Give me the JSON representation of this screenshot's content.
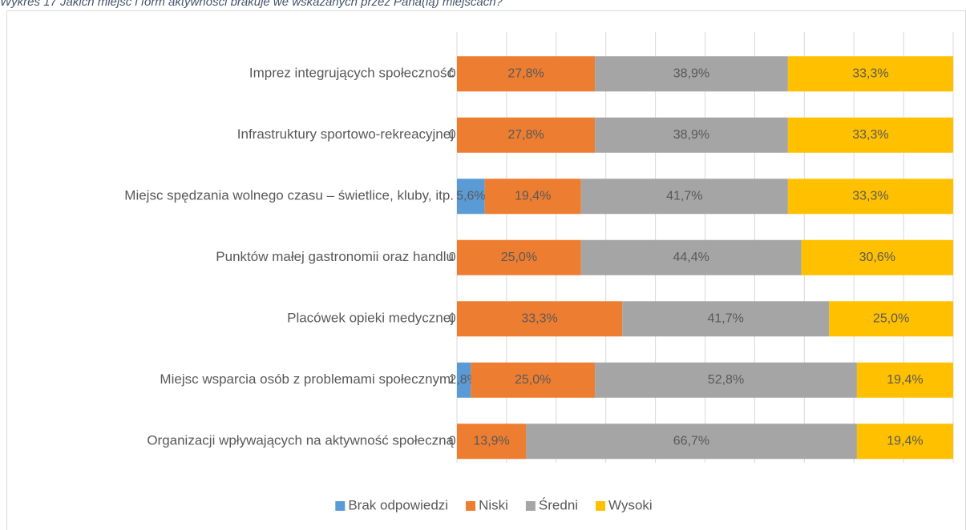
{
  "chart_data": {
    "type": "stacked-bar-horizontal",
    "title": "Wykres 17 Jakich miejsc i form aktywności brakuje we wskazanych przez Pana(ią) miejscach?",
    "categories": [
      "Imprez integrujących społeczność",
      "Infrastruktury sportowo-rekreacyjnej",
      "Miejsc spędzania wolnego czasu – świetlice, kluby, itp.",
      "Punktów małej gastronomii oraz handlu",
      "Placówek opieki medycznej",
      "Miejsc wsparcia osób z problemami społecznymi",
      "Organizacji wpływających na aktywność społeczną"
    ],
    "series": [
      {
        "name": "Brak odpowiedzi",
        "color": "#5b9bd5",
        "values": [
          0,
          0,
          5.6,
          0,
          0,
          2.8,
          0
        ],
        "value_labels": [
          "0,0%",
          "0,0%",
          "5,6%",
          "0,0%",
          "0,0%",
          "2,8%",
          "0,0%"
        ]
      },
      {
        "name": "Niski",
        "color": "#ed7d31",
        "values": [
          27.8,
          27.8,
          19.4,
          25.0,
          33.3,
          25.0,
          13.9
        ],
        "value_labels": [
          "27,8%",
          "27,8%",
          "19,4%",
          "25,0%",
          "33,3%",
          "25,0%",
          "13,9%"
        ]
      },
      {
        "name": "Średni",
        "color": "#a5a5a5",
        "values": [
          38.9,
          38.9,
          41.7,
          44.4,
          41.7,
          52.8,
          66.7
        ],
        "value_labels": [
          "38,9%",
          "38,9%",
          "41,7%",
          "44,4%",
          "41,7%",
          "52,8%",
          "66,7%"
        ]
      },
      {
        "name": "Wysoki",
        "color": "#ffc000",
        "values": [
          33.3,
          33.3,
          33.3,
          30.6,
          25.0,
          19.4,
          19.4
        ],
        "value_labels": [
          "33,3%",
          "33,3%",
          "33,3%",
          "30,6%",
          "25,0%",
          "19,4%",
          "19,4%"
        ]
      }
    ],
    "xlim": [
      0,
      100
    ],
    "xticks": [
      0,
      10,
      20,
      30,
      40,
      50,
      60,
      70,
      80,
      90,
      100
    ],
    "grid": true,
    "legend": "bottom"
  }
}
